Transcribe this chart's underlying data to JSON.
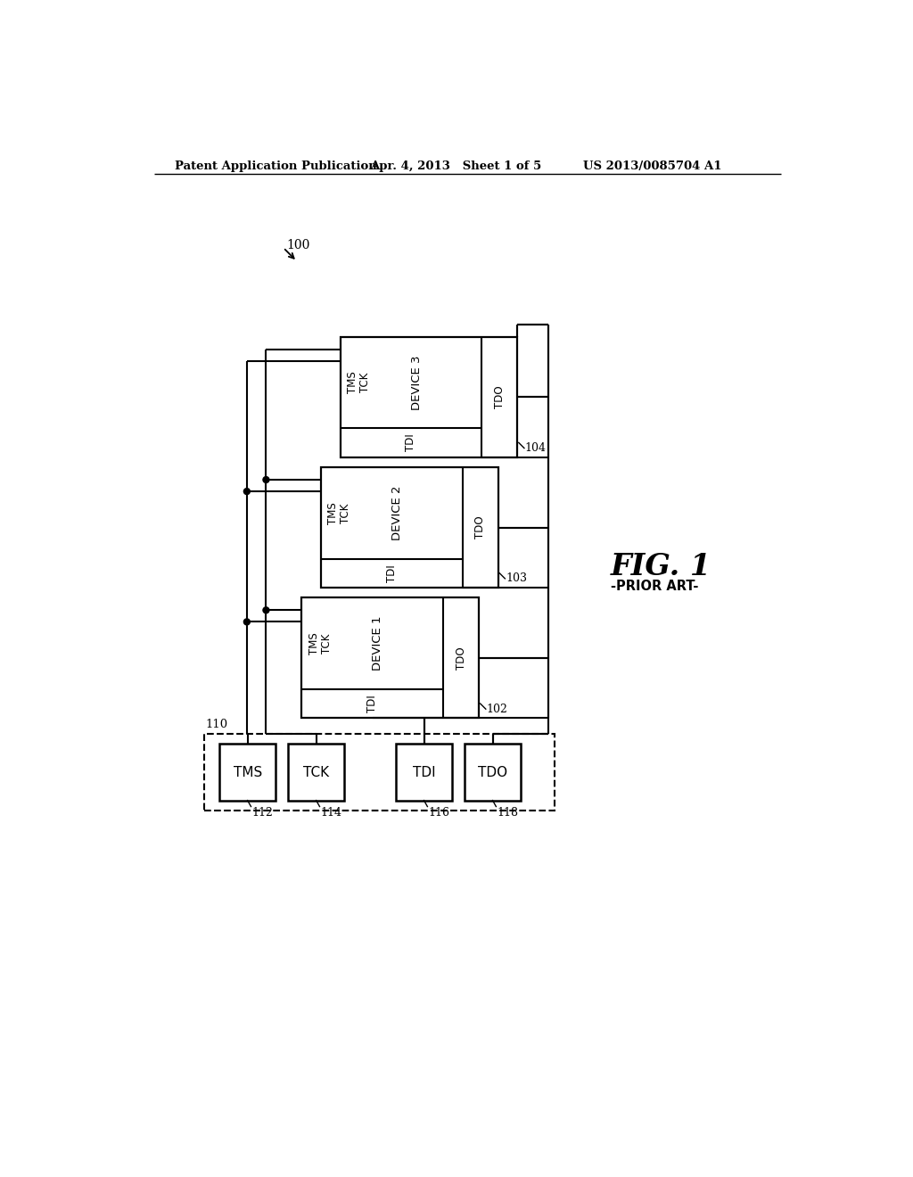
{
  "bg_color": "#ffffff",
  "header_left": "Patent Application Publication",
  "header_mid": "Apr. 4, 2013   Sheet 1 of 5",
  "header_right": "US 2013/0085704 A1",
  "fig_label": "FIG. 1",
  "fig_sublabel": "-PRIOR ART-",
  "label_100": "100",
  "label_110": "110",
  "label_102": "102",
  "label_103": "103",
  "label_104": "104",
  "label_112": "112",
  "label_114": "114",
  "label_116": "116",
  "label_118": "118"
}
